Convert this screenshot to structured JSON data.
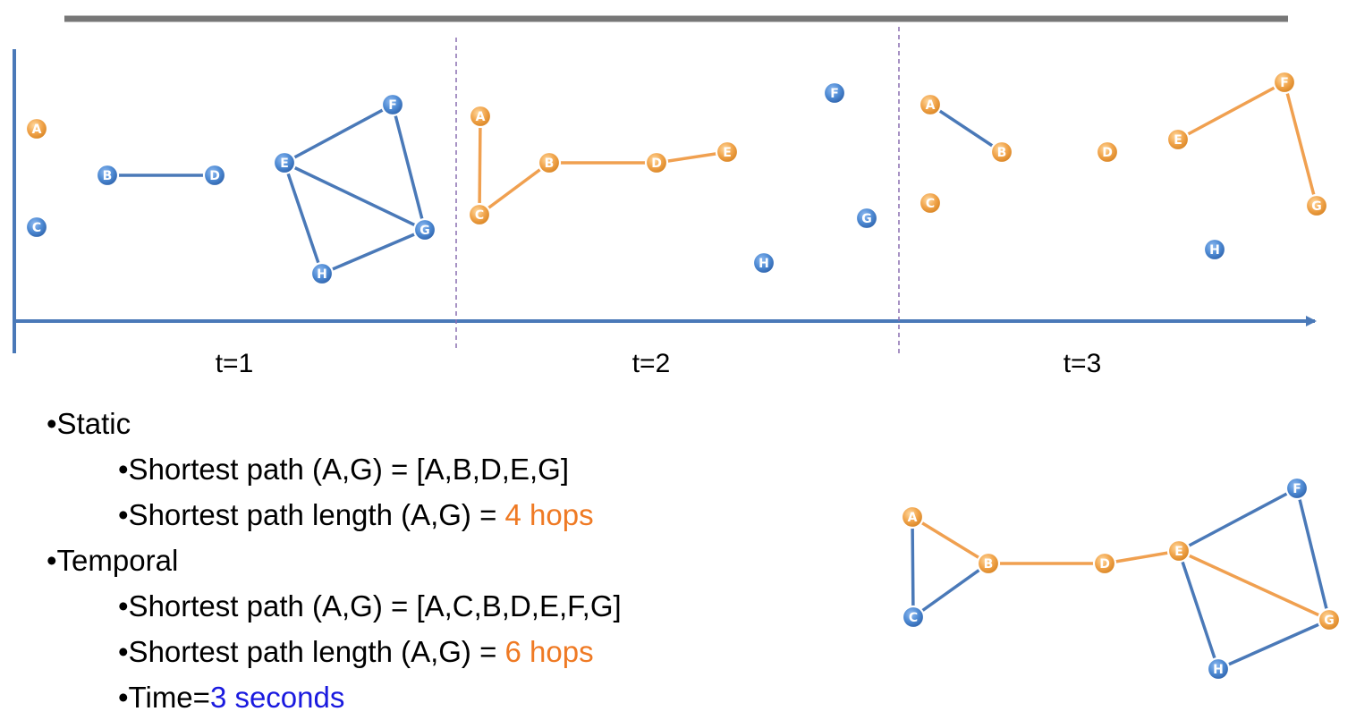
{
  "colors": {
    "blue_edge": "#4a79b8",
    "orange_edge": "#f0a050",
    "blue_node": "#4f8bd4",
    "orange_node": "#f1a54c",
    "emph_orange": "#ef7a24",
    "emph_blue": "#1a1adf"
  },
  "snapshots": [
    {
      "label": "t=1",
      "nodes": [
        {
          "id": "A",
          "color": "orange"
        },
        {
          "id": "B",
          "color": "blue"
        },
        {
          "id": "C",
          "color": "blue"
        },
        {
          "id": "D",
          "color": "blue"
        },
        {
          "id": "E",
          "color": "blue"
        },
        {
          "id": "F",
          "color": "blue"
        },
        {
          "id": "G",
          "color": "blue"
        },
        {
          "id": "H",
          "color": "blue"
        }
      ],
      "edges": [
        {
          "from": "B",
          "to": "D",
          "color": "blue"
        },
        {
          "from": "E",
          "to": "F",
          "color": "blue"
        },
        {
          "from": "F",
          "to": "G",
          "color": "blue"
        },
        {
          "from": "E",
          "to": "G",
          "color": "blue"
        },
        {
          "from": "E",
          "to": "H",
          "color": "blue"
        },
        {
          "from": "H",
          "to": "G",
          "color": "blue"
        }
      ]
    },
    {
      "label": "t=2",
      "nodes": [
        {
          "id": "A",
          "color": "orange"
        },
        {
          "id": "B",
          "color": "orange"
        },
        {
          "id": "C",
          "color": "orange"
        },
        {
          "id": "D",
          "color": "orange"
        },
        {
          "id": "E",
          "color": "orange"
        },
        {
          "id": "F",
          "color": "blue"
        },
        {
          "id": "G",
          "color": "blue"
        },
        {
          "id": "H",
          "color": "blue"
        }
      ],
      "edges": [
        {
          "from": "A",
          "to": "C",
          "color": "orange"
        },
        {
          "from": "C",
          "to": "B",
          "color": "orange"
        },
        {
          "from": "B",
          "to": "D",
          "color": "orange"
        },
        {
          "from": "D",
          "to": "E",
          "color": "orange"
        }
      ]
    },
    {
      "label": "t=3",
      "nodes": [
        {
          "id": "A",
          "color": "orange"
        },
        {
          "id": "B",
          "color": "orange"
        },
        {
          "id": "C",
          "color": "orange"
        },
        {
          "id": "D",
          "color": "orange"
        },
        {
          "id": "E",
          "color": "orange"
        },
        {
          "id": "F",
          "color": "orange"
        },
        {
          "id": "G",
          "color": "orange"
        },
        {
          "id": "H",
          "color": "blue"
        }
      ],
      "edges": [
        {
          "from": "A",
          "to": "B",
          "color": "blue"
        },
        {
          "from": "E",
          "to": "F",
          "color": "orange"
        },
        {
          "from": "F",
          "to": "G",
          "color": "orange"
        }
      ]
    }
  ],
  "aggregate": {
    "nodes": [
      {
        "id": "A",
        "color": "orange"
      },
      {
        "id": "B",
        "color": "orange"
      },
      {
        "id": "C",
        "color": "blue"
      },
      {
        "id": "D",
        "color": "orange"
      },
      {
        "id": "E",
        "color": "orange"
      },
      {
        "id": "F",
        "color": "blue"
      },
      {
        "id": "G",
        "color": "orange"
      },
      {
        "id": "H",
        "color": "blue"
      }
    ],
    "edges": [
      {
        "from": "A",
        "to": "C",
        "color": "blue"
      },
      {
        "from": "C",
        "to": "B",
        "color": "blue"
      },
      {
        "from": "A",
        "to": "B",
        "color": "orange"
      },
      {
        "from": "B",
        "to": "D",
        "color": "orange"
      },
      {
        "from": "D",
        "to": "E",
        "color": "orange"
      },
      {
        "from": "E",
        "to": "F",
        "color": "blue"
      },
      {
        "from": "F",
        "to": "G",
        "color": "blue"
      },
      {
        "from": "E",
        "to": "H",
        "color": "blue"
      },
      {
        "from": "H",
        "to": "G",
        "color": "blue"
      },
      {
        "from": "E",
        "to": "G",
        "color": "orange"
      }
    ]
  },
  "bullets": {
    "static": {
      "heading": "•Static",
      "path_label": "•Shortest path (A,G) = [A,B,D,E,G]",
      "length_label": "•Shortest path length (A,G) = ",
      "length_value": "4 hops"
    },
    "temporal": {
      "heading": "•Temporal",
      "path_label": "•Shortest path (A,G) = [A,C,B,D,E,F,G]",
      "length_label": "•Shortest path length (A,G) = ",
      "length_value": "6 hops",
      "time_label": "•Time=",
      "time_value": "3 seconds"
    }
  }
}
